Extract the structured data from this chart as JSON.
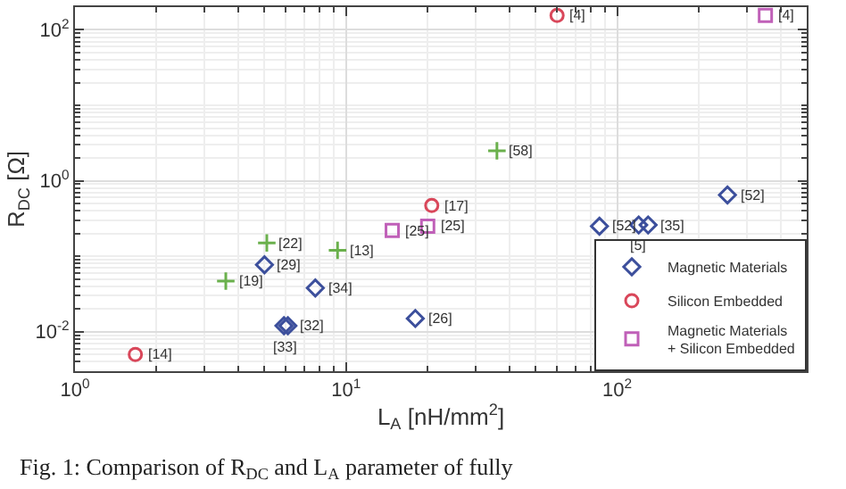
{
  "chart_data": {
    "type": "scatter",
    "xlabel": "L$_{A}$ [nH/mm$^{2}$]",
    "ylabel": "R$_{DC}$ [Ω]",
    "log": "xy",
    "grid": true,
    "legend": "bottom right",
    "xlim": [
      1,
      500
    ],
    "ylim": [
      0.003,
      200
    ],
    "xticks": [
      {
        "value": 1,
        "label": "10$^{0}$"
      },
      {
        "value": 10,
        "label": "10$^{1}$"
      },
      {
        "value": 100,
        "label": "10$^{2}$"
      }
    ],
    "yticks": [
      {
        "value": 0.01,
        "label": "10$^{-2}$"
      },
      {
        "value": 1,
        "label": "10$^{0}$"
      },
      {
        "value": 100,
        "label": "10$^{2}$"
      }
    ],
    "series": [
      {
        "name": "Magnetic Materials",
        "color": "#3c4f9c",
        "marker": "diamond",
        "x": [
          255,
          86,
          120,
          130,
          5.0,
          7.7,
          5.9,
          6.1,
          18
        ],
        "values": [
          0.65,
          0.25,
          0.26,
          0.26,
          0.077,
          0.038,
          0.012,
          0.012,
          0.015
        ]
      },
      {
        "name": "Silicon Embedded",
        "color": "#d9475a",
        "marker": "circle",
        "x": [
          60,
          20.7,
          1.67
        ],
        "values": [
          155,
          0.47,
          0.005
        ]
      },
      {
        "name": "Magnetic Materials\n+ Silicon Embedded",
        "color": "#c060b8",
        "marker": "square",
        "x": [
          352,
          14.8,
          20
        ],
        "values": [
          155,
          0.22,
          0.25
        ]
      },
      {
        "color": "#6ab04c",
        "marker": "cross",
        "x": [
          36,
          5.1,
          9.3,
          3.6
        ],
        "values": [
          2.5,
          0.15,
          0.12,
          0.047
        ]
      }
    ],
    "annotations": [
      {
        "text": "[52]",
        "x": 255,
        "y": 0.65
      },
      {
        "text": "[52]",
        "x": 86,
        "y": 0.25
      },
      {
        "text": "[35]",
        "x": 130,
        "y": 0.26
      },
      {
        "text": "[5]",
        "x": 120,
        "y": 0.26
      },
      {
        "text": "[29]",
        "x": 5.0,
        "y": 0.077
      },
      {
        "text": "[34]",
        "x": 7.7,
        "y": 0.038
      },
      {
        "text": "[32]",
        "x": 6.1,
        "y": 0.012
      },
      {
        "text": "[33]",
        "x": 5.9,
        "y": 0.012
      },
      {
        "text": "[26]",
        "x": 18,
        "y": 0.015
      },
      {
        "text": "[4]",
        "x": 60,
        "y": 155
      },
      {
        "text": "[17]",
        "x": 20.7,
        "y": 0.47
      },
      {
        "text": "[14]",
        "x": 1.67,
        "y": 0.005
      },
      {
        "text": "[4]",
        "x": 352,
        "y": 155
      },
      {
        "text": "[25]",
        "x": 14.8,
        "y": 0.22
      },
      {
        "text": "[25]",
        "x": 20,
        "y": 0.25
      },
      {
        "text": "[58]",
        "x": 36,
        "y": 2.5
      },
      {
        "text": "[22]",
        "x": 5.1,
        "y": 0.15
      },
      {
        "text": "[13]",
        "x": 9.3,
        "y": 0.12
      },
      {
        "text": "[19]",
        "x": 3.6,
        "y": 0.047
      },
      "Fig. 1: Comparison of R$_{DC}$ and L$_{A}$ parameter of fully"
    ]
  }
}
